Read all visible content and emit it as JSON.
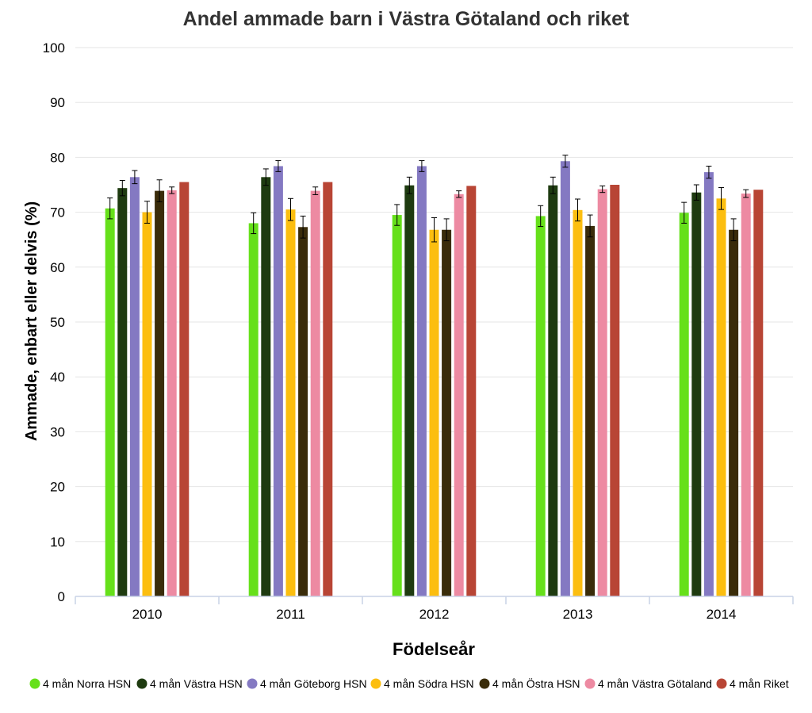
{
  "chart_data": {
    "type": "bar",
    "title": "Andel ammade barn i Västra Götaland och riket",
    "xlabel": "Födelseår",
    "ylabel": "Ammade, enbart eller delvis (%)",
    "categories": [
      "2010",
      "2011",
      "2012",
      "2013",
      "2014"
    ],
    "ylim": [
      0,
      100
    ],
    "yticks": [
      0,
      10,
      20,
      30,
      40,
      50,
      60,
      70,
      80,
      90,
      100
    ],
    "grid": true,
    "legend_position": "bottom",
    "series": [
      {
        "name": "4 mån Norra HSN",
        "color": "#66e01a",
        "values": [
          70.7,
          68.0,
          69.5,
          69.3,
          69.9
        ],
        "error": [
          1.9,
          1.9,
          1.9,
          1.9,
          1.9
        ]
      },
      {
        "name": "4 mån Västra HSN",
        "color": "#1e3b10",
        "values": [
          74.4,
          76.4,
          74.9,
          74.9,
          73.6
        ],
        "error": [
          1.4,
          1.5,
          1.5,
          1.5,
          1.4
        ]
      },
      {
        "name": "4 mån Göteborg HSN",
        "color": "#8479c2",
        "values": [
          76.4,
          78.4,
          78.4,
          79.3,
          77.3
        ],
        "error": [
          1.2,
          1.0,
          1.0,
          1.1,
          1.1
        ]
      },
      {
        "name": "4 mån Södra HSN",
        "color": "#fcbe0f",
        "values": [
          70.0,
          70.5,
          66.8,
          70.4,
          72.5
        ],
        "error": [
          2.0,
          2.0,
          2.2,
          2.0,
          2.0
        ]
      },
      {
        "name": "4 mån Östra HSN",
        "color": "#3a2c0a",
        "values": [
          73.9,
          67.3,
          66.8,
          67.5,
          66.8
        ],
        "error": [
          2.0,
          2.0,
          2.0,
          2.0,
          2.0
        ]
      },
      {
        "name": "4 mån Västra Götaland",
        "color": "#ed8aa2",
        "values": [
          74.0,
          73.9,
          73.3,
          74.2,
          73.4
        ],
        "error": [
          0.6,
          0.7,
          0.6,
          0.6,
          0.7
        ]
      },
      {
        "name": "4 mån Riket",
        "color": "#b84535",
        "values": [
          75.5,
          75.5,
          74.8,
          75.0,
          74.1
        ],
        "error": [
          0,
          0,
          0,
          0,
          0
        ]
      }
    ]
  }
}
